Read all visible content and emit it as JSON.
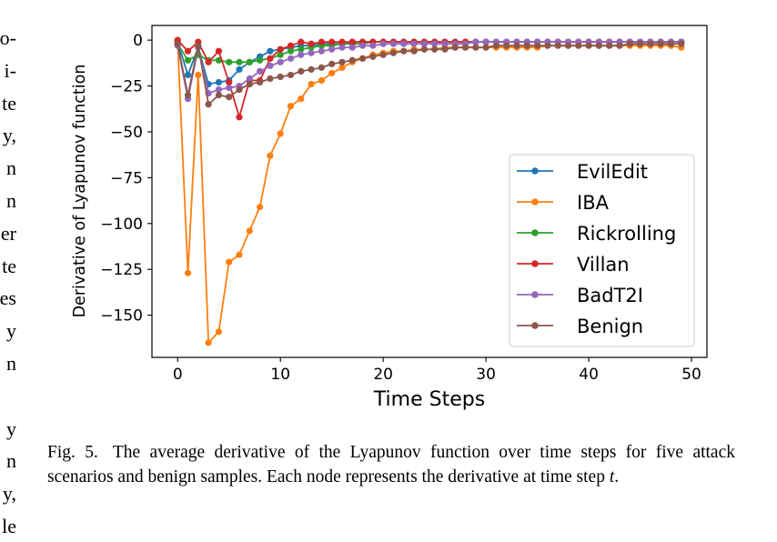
{
  "left_column_fragments": [
    "o-",
    "i-",
    "te",
    "y,",
    "n",
    "n",
    "er",
    "te",
    "es",
    "y",
    "n",
    "",
    "y",
    "n",
    "y,",
    "le"
  ],
  "caption": {
    "label": "Fig. 5.",
    "text_before_var": "The average derivative of the Lyapunov function over time steps for five attack scenarios and benign samples. Each node represents the derivative at time step ",
    "var": "t",
    "text_after_var": "."
  },
  "chart_data": {
    "type": "line",
    "xlabel": "Time Steps",
    "ylabel": "Derivative of Lyapunov function",
    "xlim": [
      -2.5,
      51.5
    ],
    "ylim": [
      -173,
      8
    ],
    "xticks": [
      0,
      10,
      20,
      30,
      40,
      50
    ],
    "yticks": [
      0,
      -25,
      -50,
      -75,
      -100,
      -125,
      -150
    ],
    "ytick_labels": [
      "0",
      "−25",
      "−50",
      "−75",
      "−100",
      "−125",
      "−150"
    ],
    "grid": false,
    "legend_position": "lower-right",
    "series": [
      {
        "name": "EvilEdit",
        "color": "#1f77b4",
        "values": [
          -1,
          -19,
          -4,
          -24,
          -23,
          -22,
          -16,
          -12,
          -9,
          -6,
          -5,
          -4,
          -3,
          -3,
          -2,
          -2,
          -2,
          -1,
          -1,
          -1,
          -1,
          -1,
          -1,
          -1,
          -1,
          -1,
          -1,
          -1,
          -1,
          -1,
          -1,
          -1,
          -1,
          -1,
          -1,
          -1,
          -1,
          -1,
          -1,
          -1,
          -1,
          -1,
          -1,
          -1,
          -1,
          -1,
          -1,
          -1,
          -1,
          -1
        ]
      },
      {
        "name": "IBA",
        "color": "#ff7f0e",
        "values": [
          -1,
          -127,
          -19,
          -165,
          -159,
          -121,
          -117,
          -104,
          -91,
          -63,
          -51,
          -36,
          -32,
          -24,
          -22,
          -18,
          -15,
          -12,
          -10,
          -8,
          -7,
          -6,
          -6,
          -5,
          -5,
          -5,
          -4,
          -4,
          -4,
          -4,
          -4,
          -4,
          -4,
          -4,
          -4,
          -4,
          -3,
          -3,
          -3,
          -3,
          -3,
          -3,
          -3,
          -3,
          -3,
          -3,
          -3,
          -3,
          -3,
          -4
        ]
      },
      {
        "name": "Rickrolling",
        "color": "#2ca02c",
        "values": [
          -2,
          -11,
          -8,
          -11,
          -11,
          -12,
          -12,
          -12,
          -11,
          -10,
          -8,
          -6,
          -5,
          -4,
          -3,
          -3,
          -2,
          -2,
          -2,
          -1,
          -1,
          -1,
          -1,
          -1,
          -1,
          -1,
          -1,
          -1,
          -1,
          -1,
          -1,
          -1,
          -1,
          -1,
          -1,
          -1,
          -1,
          -1,
          -1,
          -1,
          -1,
          -1,
          -1,
          -1,
          -1,
          -1,
          -1,
          -1,
          -1,
          -1
        ]
      },
      {
        "name": "Villan",
        "color": "#d62728",
        "values": [
          0,
          -6,
          -1,
          -12,
          -6,
          -23,
          -42,
          -22,
          -22,
          -10,
          -5,
          -3,
          -1,
          -2,
          -1,
          -1,
          -1,
          -1,
          -1,
          -1,
          -1,
          -1,
          -1,
          -1,
          -1,
          -1,
          -1,
          -1,
          -1,
          -1,
          -1,
          -1,
          -1,
          -1,
          -1,
          -1,
          -1,
          -1,
          -1,
          -1,
          -1,
          -1,
          -1,
          -1,
          -1,
          -1,
          -1,
          -1,
          -1,
          -1
        ]
      },
      {
        "name": "BadT2I",
        "color": "#9467bd",
        "values": [
          -3,
          -32,
          -4,
          -29,
          -27,
          -26,
          -25,
          -21,
          -17,
          -14,
          -12,
          -10,
          -8,
          -7,
          -6,
          -5,
          -4,
          -4,
          -3,
          -3,
          -2,
          -2,
          -2,
          -2,
          -2,
          -2,
          -2,
          -2,
          -2,
          -1,
          -1,
          -1,
          -1,
          -1,
          -1,
          -1,
          -1,
          -1,
          -1,
          -1,
          -1,
          -1,
          -1,
          -1,
          -1,
          -1,
          -1,
          -1,
          -1,
          -1
        ]
      },
      {
        "name": "Benign",
        "color": "#8c564b",
        "values": [
          -2,
          -30,
          -3,
          -35,
          -30,
          -31,
          -27,
          -24,
          -23,
          -21,
          -20,
          -19,
          -17,
          -16,
          -15,
          -13,
          -12,
          -11,
          -10,
          -9,
          -8,
          -7,
          -6,
          -6,
          -5,
          -5,
          -5,
          -4,
          -4,
          -4,
          -4,
          -3,
          -3,
          -3,
          -3,
          -3,
          -3,
          -3,
          -3,
          -3,
          -3,
          -3,
          -3,
          -3,
          -2,
          -2,
          -2,
          -2,
          -2,
          -2
        ]
      }
    ]
  }
}
